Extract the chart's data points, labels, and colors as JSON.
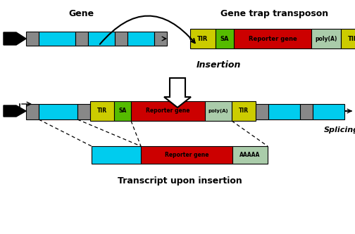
{
  "colors": {
    "cyan": "#00CCEE",
    "gray": "#888888",
    "yellow": "#CCCC00",
    "green": "#55BB00",
    "red": "#CC0000",
    "light_green": "#AACCAA",
    "black": "#000000",
    "white": "#FFFFFF"
  },
  "top_gene_label": "Gene",
  "top_transposon_label": "Gene trap transposon",
  "insertion_label": "Insertion",
  "splicing_label": "Splicing",
  "transcript_label": "Transcript upon insertion",
  "tir_label": "TIR",
  "sa_label": "SA",
  "reporter_label": "Reporter gene",
  "polya_label": "poly(A)",
  "aaaaa_label": "AAAAA"
}
